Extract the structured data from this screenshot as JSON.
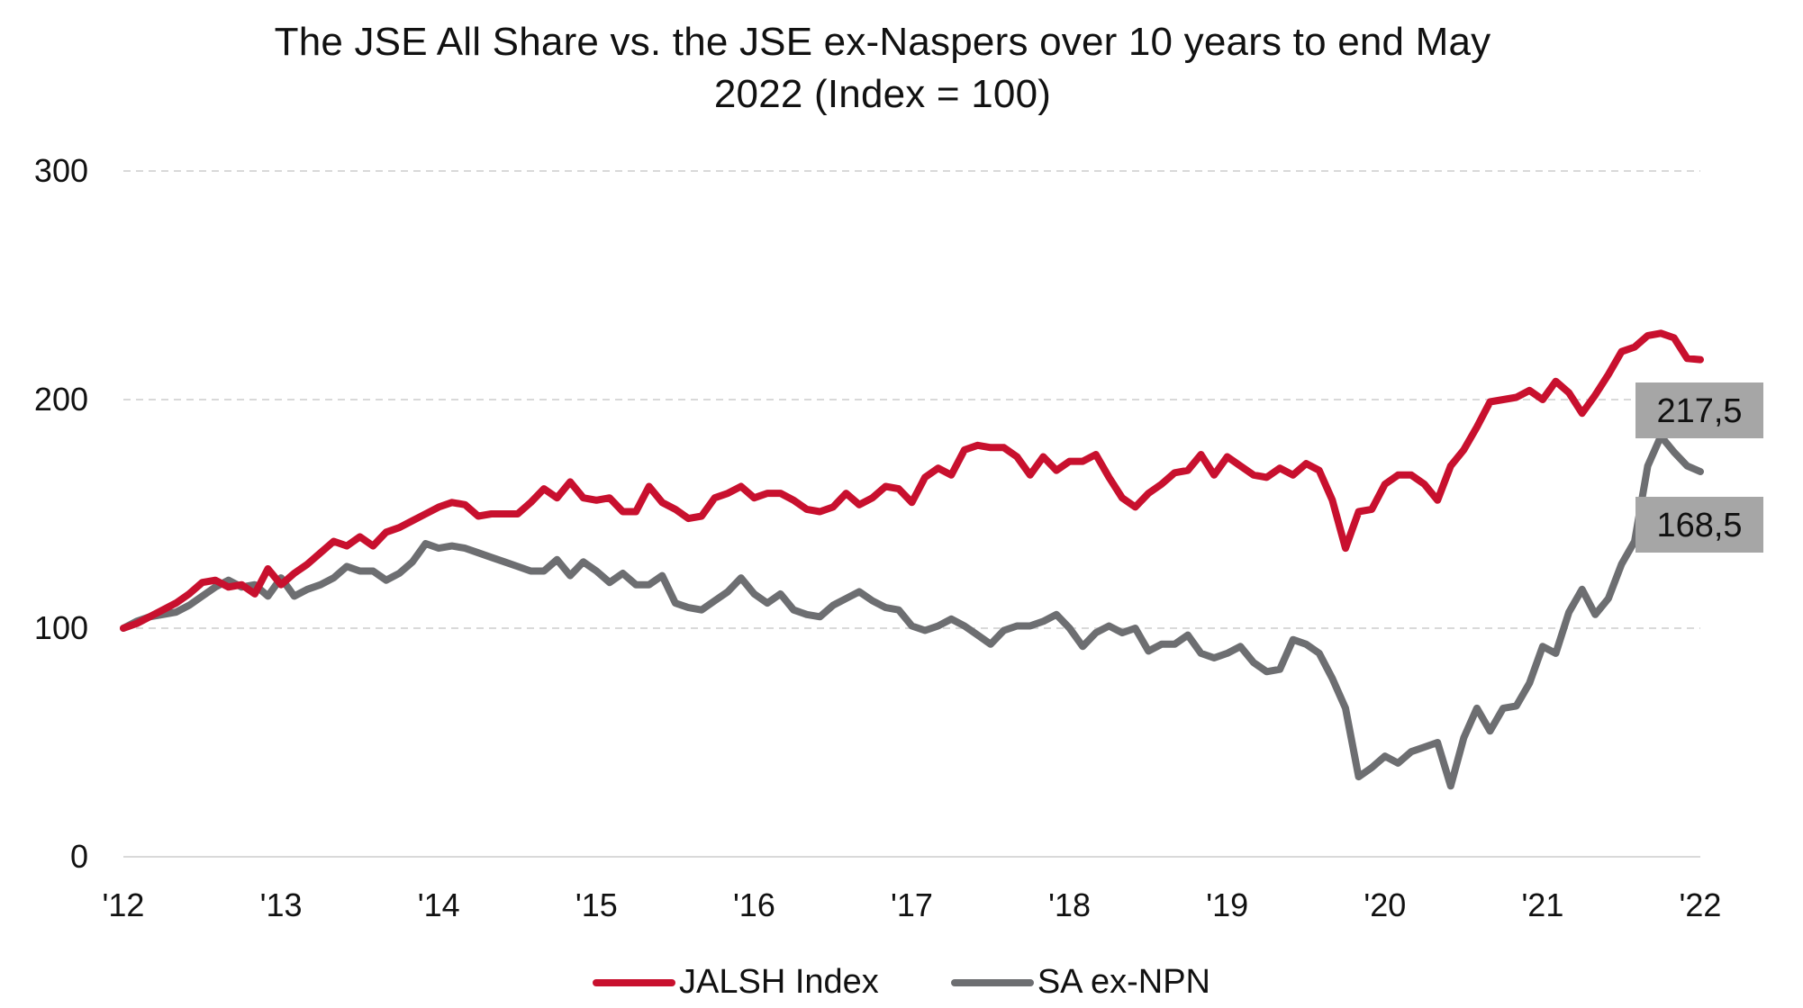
{
  "chart_data": {
    "type": "line",
    "title": "The JSE All Share vs. the JSE ex-Naspers over 10 years to end May 2022 (Index = 100)",
    "title_lines": [
      "The JSE All Share vs. the JSE ex-Naspers over 10 years to end May",
      "2022 (Index = 100)"
    ],
    "xlabel": "",
    "ylabel": "",
    "ylim": [
      0,
      300
    ],
    "yticks": [
      0,
      100,
      200,
      300
    ],
    "ytick_labels": [
      "0",
      "100",
      "200",
      "300"
    ],
    "xtick_labels": [
      "'12",
      "'13",
      "'14",
      "'15",
      "'16",
      "'17",
      "'18",
      "'19",
      "'20",
      "'21",
      "'22"
    ],
    "x_start": "May 2012",
    "x_end": "May 2022",
    "x_frequency": "monthly",
    "grid": "horizontal dashed",
    "legend_position": "bottom",
    "series": [
      {
        "name": "JALSH Index",
        "color": "#C8102E",
        "end_label": "217,5",
        "values": [
          100,
          102,
          105,
          108,
          111,
          115,
          120,
          121,
          118,
          119,
          115,
          126,
          119,
          124,
          128,
          133,
          138,
          136,
          140,
          136,
          142,
          144,
          147,
          150,
          153,
          155,
          154,
          149,
          150,
          150,
          150,
          155,
          161,
          157,
          164,
          157,
          156,
          157,
          151,
          151,
          162,
          155,
          152,
          148,
          149,
          157,
          159,
          162,
          157,
          159,
          159,
          156,
          152,
          151,
          153,
          159,
          154,
          157,
          162,
          161,
          155,
          166,
          170,
          167,
          178,
          180,
          179,
          179,
          175,
          167,
          175,
          169,
          173,
          173,
          176,
          166,
          157,
          153,
          159,
          163,
          168,
          169,
          176,
          167,
          175,
          171,
          167,
          166,
          170,
          167,
          172,
          169,
          156,
          135,
          151,
          152,
          163,
          167,
          167,
          163,
          156,
          171,
          178,
          188,
          199,
          200,
          201,
          204,
          200,
          208,
          203,
          194,
          202,
          211,
          221,
          223,
          228,
          229,
          227,
          218,
          217.5
        ]
      },
      {
        "name": "SA ex-NPN",
        "color": "#6D6E71",
        "end_label": "168,5",
        "values": [
          100,
          103,
          105,
          106,
          107,
          110,
          114,
          118,
          121,
          118,
          119,
          114,
          122,
          114,
          117,
          119,
          122,
          127,
          125,
          125,
          121,
          124,
          129,
          137,
          135,
          136,
          135,
          133,
          131,
          129,
          127,
          125,
          125,
          130,
          123,
          129,
          125,
          120,
          124,
          119,
          119,
          123,
          111,
          109,
          108,
          112,
          116,
          122,
          115,
          111,
          115,
          108,
          106,
          105,
          110,
          113,
          116,
          112,
          109,
          108,
          101,
          99,
          101,
          104,
          101,
          97,
          93,
          99,
          101,
          101,
          103,
          106,
          100,
          92,
          98,
          101,
          98,
          100,
          90,
          93,
          93,
          97,
          89,
          87,
          89,
          92,
          85,
          81,
          82,
          95,
          93,
          89,
          78,
          65,
          35,
          39,
          44,
          41,
          46,
          48,
          50,
          31,
          52,
          65,
          55,
          65,
          66,
          76,
          92,
          89,
          107,
          117,
          106,
          113,
          128,
          138,
          171,
          184,
          177,
          171,
          168.5
        ]
      }
    ],
    "end_label_box_color": "#A6A6A6",
    "gridline_color": "#D9D9D9"
  }
}
